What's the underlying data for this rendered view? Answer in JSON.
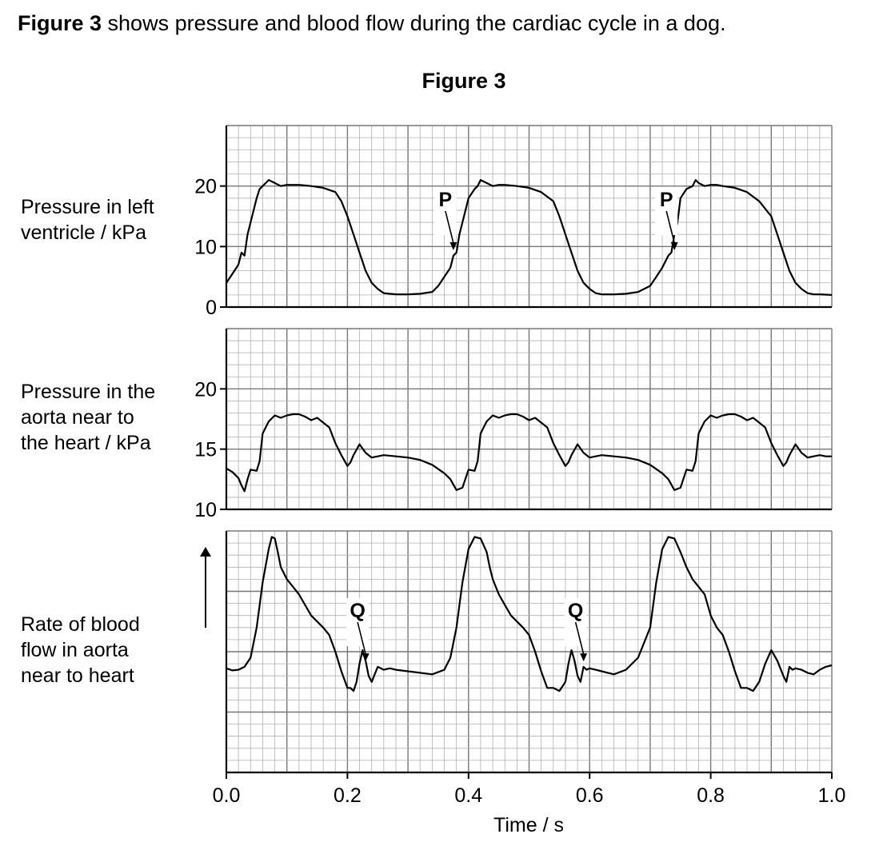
{
  "intro": {
    "figure_ref": "Figure 3",
    "text": " shows pressure and blood flow during the cardiac cycle in a dog."
  },
  "figure_title": "Figure 3",
  "panels": {
    "lv": {
      "label_lines": [
        "Pressure in left",
        "ventricle / kPa"
      ]
    },
    "aorta": {
      "label_lines": [
        "Pressure in the",
        "aorta near to",
        "the heart / kPa"
      ]
    },
    "flow": {
      "label_lines": [
        "Rate of blood",
        "flow in aorta",
        "near to heart"
      ]
    }
  },
  "colors": {
    "grid_minor": "#b0b0b0",
    "grid_major": "#777777",
    "line": "#000000"
  },
  "chart_data": [
    {
      "type": "line",
      "series": [
        {
          "name": "",
          "x": [
            0.0,
            0.01,
            0.02,
            0.025,
            0.03,
            0.035,
            0.04,
            0.05,
            0.055,
            0.06,
            0.07,
            0.08,
            0.09,
            0.1,
            0.12,
            0.14,
            0.16,
            0.18,
            0.19,
            0.2,
            0.21,
            0.22,
            0.23,
            0.24,
            0.25,
            0.26,
            0.28,
            0.3,
            0.32,
            0.34,
            0.35,
            0.36,
            0.37,
            0.375,
            0.38,
            0.385,
            0.39,
            0.4,
            0.41,
            0.415,
            0.42,
            0.43,
            0.44,
            0.45,
            0.46,
            0.48,
            0.5,
            0.52,
            0.54,
            0.55,
            0.56,
            0.57,
            0.58,
            0.59,
            0.6,
            0.61,
            0.62,
            0.64,
            0.66,
            0.68,
            0.7,
            0.71,
            0.72,
            0.73,
            0.735,
            0.74,
            0.745,
            0.75,
            0.76,
            0.77,
            0.775,
            0.78,
            0.79,
            0.8,
            0.81,
            0.82,
            0.84,
            0.86,
            0.88,
            0.9,
            0.91,
            0.92,
            0.93,
            0.94,
            0.95,
            0.96,
            0.97,
            0.98,
            1.0
          ],
          "values": [
            4,
            5.5,
            7,
            9,
            8.5,
            12,
            14,
            18,
            19.5,
            20,
            21,
            20.5,
            20,
            20.2,
            20.2,
            20,
            19.7,
            19,
            17.5,
            15,
            12,
            9,
            6,
            4,
            3,
            2.3,
            2.1,
            2.1,
            2.2,
            2.5,
            3.5,
            5,
            6.5,
            8.5,
            9,
            12,
            14,
            18,
            19.5,
            20,
            21,
            20.5,
            20,
            20.2,
            20.2,
            20,
            19.7,
            19,
            17.5,
            15,
            12,
            9,
            6,
            4,
            3,
            2.3,
            2.1,
            2.1,
            2.2,
            2.5,
            3.5,
            5,
            6.5,
            8.5,
            9,
            12,
            14,
            18,
            19.5,
            20,
            21,
            20.5,
            20,
            20.2,
            20.2,
            20,
            19.7,
            19,
            17.5,
            15,
            12,
            9,
            6,
            4,
            3,
            2.3,
            2.1,
            2.1,
            2.0
          ]
        }
      ],
      "y_ticks": [
        "0",
        "10",
        "20"
      ],
      "ylim": [
        0,
        30
      ],
      "annotations": [
        {
          "label": "P",
          "x": 0.375,
          "y": 9
        },
        {
          "label": "P",
          "x": 0.74,
          "y": 9
        }
      ]
    },
    {
      "type": "line",
      "series": [
        {
          "name": "",
          "x": [
            0.0,
            0.01,
            0.02,
            0.025,
            0.03,
            0.035,
            0.04,
            0.05,
            0.055,
            0.06,
            0.065,
            0.07,
            0.08,
            0.09,
            0.1,
            0.11,
            0.12,
            0.13,
            0.14,
            0.15,
            0.16,
            0.17,
            0.18,
            0.19,
            0.2,
            0.205,
            0.21,
            0.22,
            0.23,
            0.24,
            0.25,
            0.26,
            0.28,
            0.3,
            0.32,
            0.34,
            0.36,
            0.37,
            0.38,
            0.39,
            0.4,
            0.41,
            0.415,
            0.42,
            0.425,
            0.43,
            0.44,
            0.45,
            0.46,
            0.47,
            0.48,
            0.49,
            0.5,
            0.51,
            0.52,
            0.53,
            0.54,
            0.55,
            0.56,
            0.565,
            0.57,
            0.58,
            0.59,
            0.6,
            0.61,
            0.62,
            0.64,
            0.66,
            0.68,
            0.7,
            0.72,
            0.73,
            0.74,
            0.75,
            0.76,
            0.77,
            0.775,
            0.78,
            0.785,
            0.79,
            0.8,
            0.81,
            0.82,
            0.83,
            0.84,
            0.85,
            0.86,
            0.87,
            0.88,
            0.89,
            0.9,
            0.91,
            0.92,
            0.925,
            0.93,
            0.94,
            0.95,
            0.96,
            0.97,
            0.98,
            0.99,
            1.0
          ],
          "values": [
            13.4,
            13.1,
            12.6,
            12.0,
            11.5,
            12.5,
            13.3,
            13.2,
            14.0,
            16.3,
            16.8,
            17.3,
            17.8,
            17.6,
            17.8,
            17.9,
            17.9,
            17.7,
            17.4,
            17.6,
            17.2,
            16.8,
            15.5,
            14.5,
            13.6,
            13.9,
            14.5,
            15.4,
            14.7,
            14.3,
            14.4,
            14.5,
            14.4,
            14.3,
            14.1,
            13.7,
            13.0,
            12.5,
            11.6,
            11.8,
            13.3,
            13.2,
            14.0,
            16.3,
            16.8,
            17.3,
            17.8,
            17.6,
            17.8,
            17.9,
            17.9,
            17.7,
            17.4,
            17.6,
            17.2,
            16.8,
            15.5,
            14.5,
            13.6,
            13.9,
            14.5,
            15.4,
            14.7,
            14.3,
            14.4,
            14.5,
            14.4,
            14.3,
            14.1,
            13.7,
            13.0,
            12.5,
            11.6,
            11.8,
            13.3,
            13.2,
            14.0,
            16.3,
            16.8,
            17.3,
            17.8,
            17.6,
            17.8,
            17.9,
            17.9,
            17.7,
            17.4,
            17.6,
            17.2,
            16.8,
            15.5,
            14.5,
            13.6,
            13.9,
            14.5,
            15.4,
            14.7,
            14.3,
            14.4,
            14.5,
            14.4,
            14.4
          ]
        }
      ],
      "y_ticks": [
        "10",
        "15",
        "20"
      ],
      "ylim": [
        10,
        25
      ]
    },
    {
      "type": "line",
      "series": [
        {
          "name": "",
          "x": [
            0.0,
            0.01,
            0.02,
            0.03,
            0.04,
            0.05,
            0.06,
            0.07,
            0.075,
            0.08,
            0.085,
            0.09,
            0.1,
            0.11,
            0.12,
            0.13,
            0.14,
            0.15,
            0.16,
            0.17,
            0.18,
            0.19,
            0.2,
            0.205,
            0.21,
            0.215,
            0.22,
            0.225,
            0.23,
            0.235,
            0.24,
            0.25,
            0.26,
            0.27,
            0.28,
            0.3,
            0.32,
            0.34,
            0.36,
            0.37,
            0.38,
            0.39,
            0.4,
            0.41,
            0.42,
            0.43,
            0.435,
            0.44,
            0.445,
            0.45,
            0.46,
            0.47,
            0.48,
            0.49,
            0.5,
            0.51,
            0.52,
            0.53,
            0.54,
            0.55,
            0.56,
            0.565,
            0.57,
            0.575,
            0.58,
            0.585,
            0.59,
            0.595,
            0.6,
            0.61,
            0.62,
            0.63,
            0.64,
            0.66,
            0.68,
            0.7,
            0.71,
            0.72,
            0.73,
            0.74,
            0.75,
            0.76,
            0.77,
            0.78,
            0.79,
            0.795,
            0.8,
            0.805,
            0.81,
            0.82,
            0.83,
            0.84,
            0.85,
            0.86,
            0.87,
            0.88,
            0.89,
            0.9,
            0.91,
            0.92,
            0.925,
            0.93,
            0.935,
            0.94,
            0.95,
            0.955,
            0.96,
            0.97,
            0.98,
            0.99,
            1.0
          ],
          "values": [
            1.45,
            1.38,
            1.4,
            1.5,
            1.8,
            2.8,
            4.3,
            5.4,
            5.8,
            5.75,
            5.3,
            4.8,
            4.4,
            4.15,
            3.9,
            3.55,
            3.2,
            3.0,
            2.8,
            2.55,
            2.0,
            1.35,
            0.8,
            0.8,
            0.7,
            1.0,
            1.6,
            2.05,
            1.7,
            1.2,
            1.0,
            1.5,
            1.4,
            1.45,
            1.4,
            1.35,
            1.3,
            1.25,
            1.4,
            1.8,
            2.8,
            4.3,
            5.4,
            5.8,
            5.75,
            5.3,
            4.8,
            4.4,
            4.15,
            3.9,
            3.55,
            3.2,
            3.0,
            2.8,
            2.55,
            2.0,
            1.35,
            0.8,
            0.8,
            0.7,
            1.0,
            1.6,
            2.05,
            1.7,
            1.2,
            1.0,
            1.5,
            1.4,
            1.45,
            1.4,
            1.35,
            1.3,
            1.25,
            1.4,
            1.8,
            2.8,
            4.3,
            5.4,
            5.8,
            5.75,
            5.3,
            4.8,
            4.4,
            4.15,
            3.9,
            3.55,
            3.2,
            3.0,
            2.8,
            2.55,
            2.0,
            1.35,
            0.8,
            0.8,
            0.7,
            1.0,
            1.6,
            2.05,
            1.7,
            1.2,
            1.0,
            1.5,
            1.4,
            1.45,
            1.4,
            1.35,
            1.3,
            1.25,
            1.4,
            1.5,
            1.55
          ]
        }
      ],
      "ylabel_arrow": true,
      "ylim": [
        -2,
        6
      ],
      "annotations": [
        {
          "label": "Q",
          "x": 0.23,
          "y": 1.6
        },
        {
          "label": "Q",
          "x": 0.59,
          "y": 1.6
        }
      ]
    }
  ],
  "x_axis": {
    "ticks": [
      "0.0",
      "0.2",
      "0.4",
      "0.6",
      "0.8",
      "1.0"
    ],
    "label": "Time / s",
    "xlim": [
      0,
      1
    ]
  }
}
